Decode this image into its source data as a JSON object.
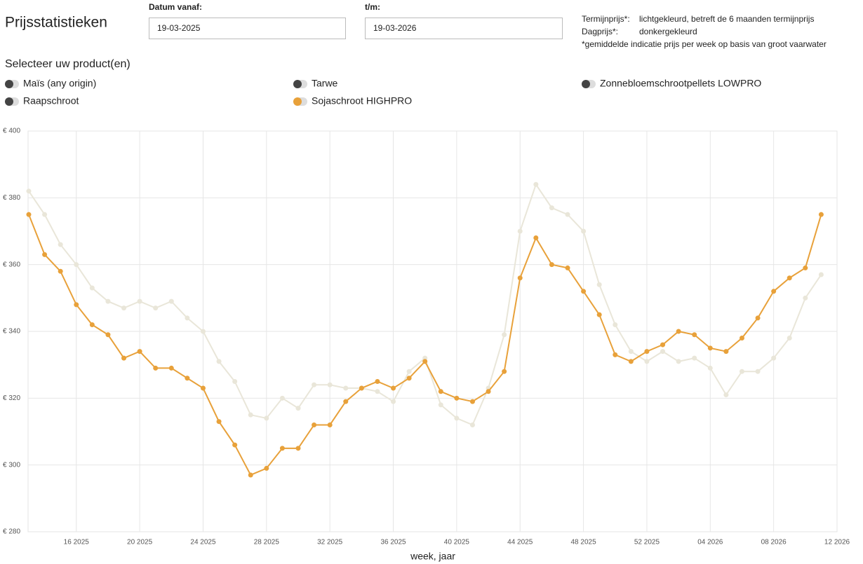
{
  "header": {
    "title": "Prijsstatistieken"
  },
  "filters": [
    {
      "label": "Datum vanaf:",
      "value": "19-03-2025"
    },
    {
      "label": "t/m:",
      "value": "19-03-2026"
    }
  ],
  "notes": [
    "lichtgekleurd, betreft de 6 maanden termijnprijs",
    "donkergekleurd",
    "*gemiddelde indicatie prijs per week op basis van groot vaarwater"
  ],
  "product_heading": "Selecteer uw product(en)",
  "products": [
    {
      "name": "Maïs (any origin)",
      "color": "#444444"
    },
    {
      "name": "Tarwe",
      "color": "#444444"
    },
    {
      "name": "Zonnebloemschrootpellets LOWPRO",
      "color": "#444444"
    },
    {
      "name": "Raapschroot",
      "color": "#444444"
    },
    {
      "name": "Sojaschroot HIGHPRO",
      "color": "#e8a13a"
    }
  ],
  "chart_data": {
    "type": "line",
    "x_label": "week, jaar",
    "categories": [
      null,
      null,
      null,
      "16 2025",
      null,
      null,
      null,
      "20 2025",
      null,
      null,
      null,
      "24 2025",
      null,
      null,
      null,
      "28 2025",
      null,
      null,
      null,
      "32 2025",
      null,
      null,
      null,
      "36 2025",
      null,
      null,
      null,
      "40 2025",
      null,
      null,
      null,
      "44 2025",
      null,
      null,
      null,
      "48 2025",
      null,
      null,
      null,
      "52 2025",
      null,
      null,
      null,
      "04 2026",
      null,
      null,
      null,
      "08 2026",
      null,
      null,
      null,
      "12 2026"
    ],
    "series": [
      {
        "name": "Termijnprijs*:",
        "color": "#e9e6d9",
        "values": [
          382,
          375,
          366,
          360,
          353,
          349,
          347,
          349,
          347,
          349,
          344,
          340,
          331,
          325,
          315,
          314,
          320,
          317,
          324,
          324,
          323,
          323,
          322,
          319,
          328,
          332,
          318,
          314,
          312,
          323,
          339,
          370,
          384,
          377,
          375,
          370,
          354,
          342,
          334,
          331,
          334,
          331,
          332,
          329,
          321,
          328,
          328,
          332,
          338,
          350,
          357,
          null
        ]
      },
      {
        "name": "Dagprijs*:",
        "color": "#e8a13a",
        "values": [
          375,
          363,
          358,
          348,
          342,
          339,
          332,
          334,
          329,
          329,
          326,
          323,
          313,
          306,
          297,
          299,
          305,
          305,
          312,
          312,
          319,
          323,
          325,
          323,
          326,
          331,
          322,
          320,
          319,
          322,
          328,
          356,
          368,
          360,
          359,
          352,
          345,
          333,
          331,
          334,
          336,
          340,
          339,
          335,
          334,
          338,
          344,
          352,
          356,
          359,
          375,
          null
        ]
      }
    ],
    "ylim": [
      280,
      400
    ],
    "yticks": [
      {
        "value": 280,
        "label": "€ 280"
      },
      {
        "value": 300,
        "label": "€ 300"
      },
      {
        "value": 320,
        "label": "€ 320"
      },
      {
        "value": 340,
        "label": "€ 340"
      },
      {
        "value": 360,
        "label": "€ 360"
      },
      {
        "value": 380,
        "label": "€ 380"
      },
      {
        "value": 400,
        "label": "€ 400"
      }
    ],
    "grid": true
  }
}
